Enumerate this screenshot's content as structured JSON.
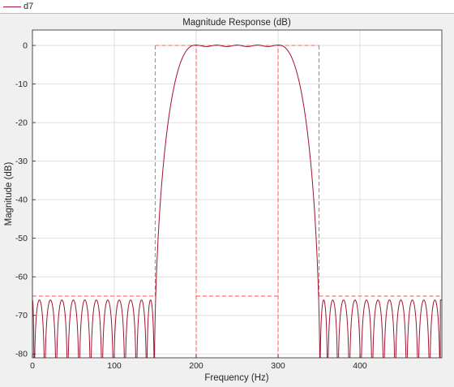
{
  "legend": {
    "entries": [
      {
        "label": "d7",
        "color": "#a2142f"
      }
    ]
  },
  "chart_data": {
    "type": "line",
    "title": "Magnitude Response (dB)",
    "xlabel": "Frequency (Hz)",
    "ylabel": "Magnitude (dB)",
    "xlim": [
      0,
      500
    ],
    "ylim": [
      -81,
      4
    ],
    "xticks": [
      0,
      100,
      200,
      300,
      400
    ],
    "yticks": [
      0,
      -10,
      -20,
      -30,
      -40,
      -50,
      -60,
      -70,
      -80
    ],
    "grid": true,
    "legend_position": "top-left, above plot",
    "series": [
      {
        "name": "d7",
        "color": "#a2142f",
        "style": "solid",
        "description": "bandpass response: passband ~200-300 Hz near 0 dB, transition to ~150/350 Hz, equiripple stopband peaks near -66 dB with nulls"
      },
      {
        "color": "#ff6464",
        "style": "dashed",
        "kind": "specification mask",
        "segments": [
          {
            "x": [
              0,
              150
            ],
            "y": [
              -65,
              -65
            ]
          },
          {
            "x": [
              150,
              150
            ],
            "y": [
              -65,
              0
            ]
          },
          {
            "x": [
              150,
              350
            ],
            "y": [
              0,
              0
            ]
          },
          {
            "x": [
              350,
              350
            ],
            "y": [
              0,
              -65
            ]
          },
          {
            "x": [
              350,
              500
            ],
            "y": [
              -65,
              -65
            ]
          },
          {
            "x": [
              200,
              200
            ],
            "y": [
              -81,
              0
            ]
          },
          {
            "x": [
              200,
              300
            ],
            "y": [
              -65,
              -65
            ]
          },
          {
            "x": [
              300,
              300
            ],
            "y": [
              -81,
              0
            ]
          }
        ]
      }
    ],
    "stopband_lobe_peaks_low": [
      8,
      22,
      36,
      50,
      64,
      78,
      92,
      106,
      120,
      134,
      145
    ],
    "stopband_lobe_peaks_high": [
      355,
      366,
      380,
      394,
      408,
      422,
      436,
      450,
      464,
      478,
      492
    ],
    "stopband_lobe_level_db": -66,
    "passband_ripple_db": 0.4
  }
}
